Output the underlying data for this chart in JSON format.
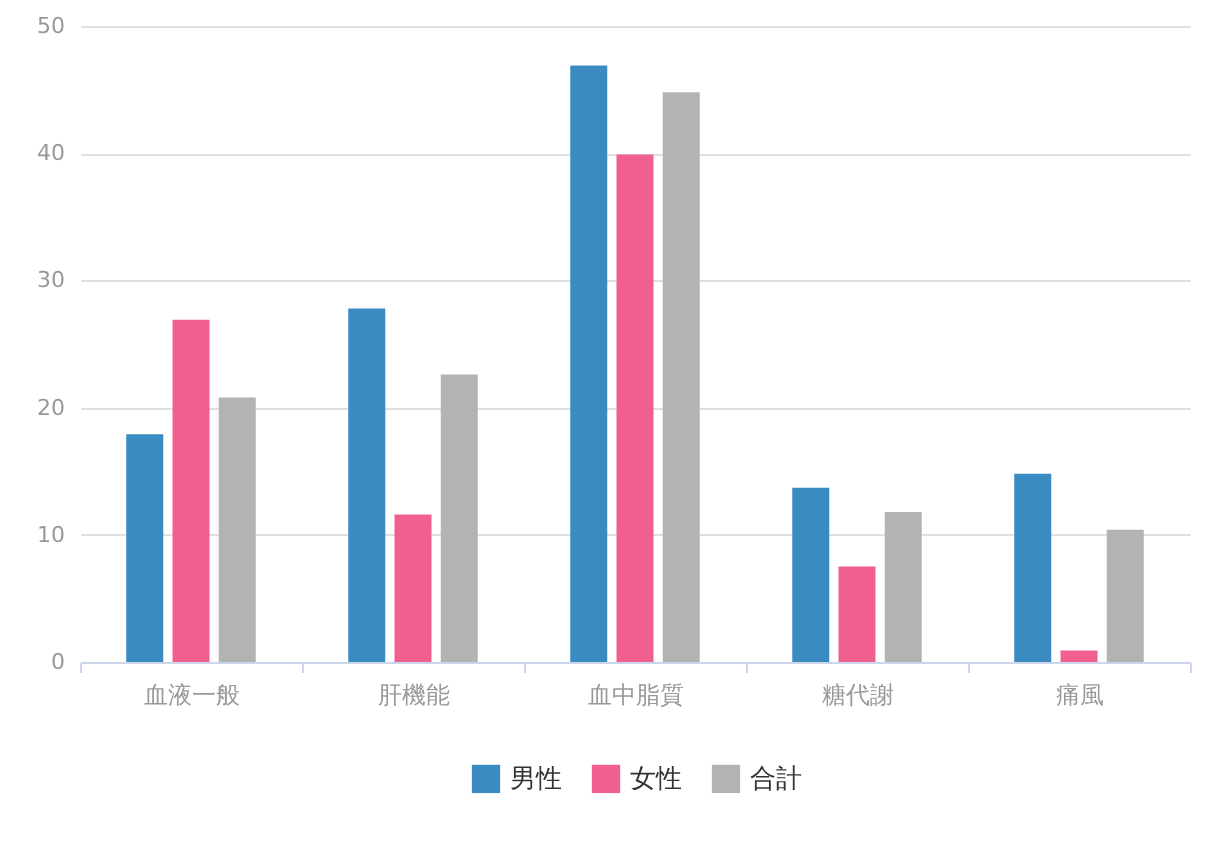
{
  "chart_data": {
    "type": "bar",
    "categories": [
      "血液一般",
      "肝機能",
      "血中脂質",
      "糖代謝",
      "痛風"
    ],
    "series": [
      {
        "name": "男性",
        "color": "#3a8bc2",
        "values": [
          17.9,
          27.8,
          46.9,
          13.7,
          14.8
        ]
      },
      {
        "name": "女性",
        "color": "#f0608f",
        "values": [
          26.9,
          11.6,
          39.9,
          7.5,
          0.9
        ]
      },
      {
        "name": "合計",
        "color": "#b3b3b3",
        "values": [
          20.8,
          22.6,
          44.8,
          11.8,
          10.4
        ]
      }
    ],
    "ylim": [
      0,
      50
    ],
    "yticks": [
      0,
      10,
      20,
      30,
      40,
      50
    ],
    "grid": "y",
    "legend": "bottom"
  }
}
